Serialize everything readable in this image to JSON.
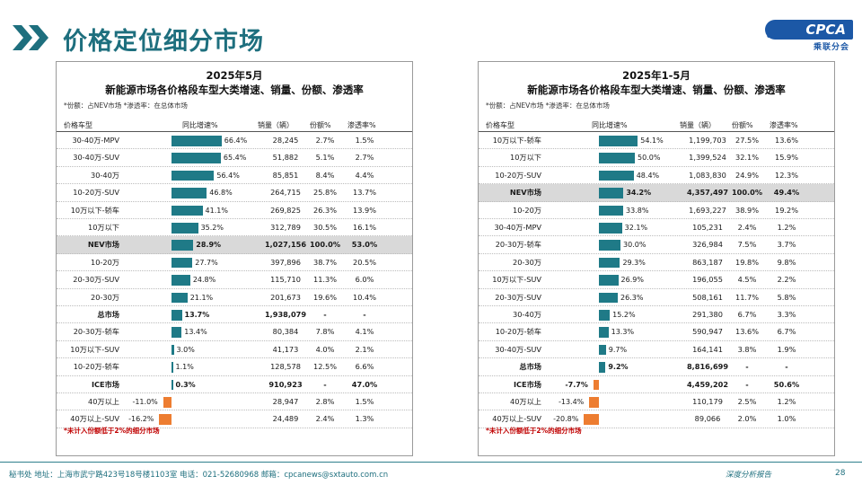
{
  "header": {
    "title": "价格定位细分市场",
    "logo_text": "CPCA",
    "logo_sub": "乘联分会",
    "logo_mark": "CPCA"
  },
  "footer": {
    "text": "秘书处  地址：上海市武宁路423号18号楼1103室  电话：021-52680968  邮箱：cpcanews@sxtauto.com.cn",
    "right": "深度分析报告",
    "page": "28"
  },
  "colors": {
    "accent": "#1e6f7e",
    "bar_positive": "#1f7a87",
    "bar_negative": "#ed7d31",
    "highlight_row": "#d9d9d9",
    "footnote": "#c00000"
  },
  "columns": [
    "价格车型",
    "同比增速%",
    "销量（辆）",
    "份额%",
    "渗透率%"
  ],
  "left": {
    "title1": "2025年5月",
    "title2": "新能源市场各价格段车型大类增速、销量、份额、渗透率",
    "note": "*份额：占NEV市场   *渗透率：在总体市场",
    "footnote": "*未计入份额低于2%的细分市场",
    "rows": [
      {
        "name": "30-40万-MPV",
        "growth": "66.4%",
        "g": 66.4,
        "sales": "28,245",
        "share": "2.7%",
        "pen": "1.5%",
        "style": ""
      },
      {
        "name": "30-40万-SUV",
        "growth": "65.4%",
        "g": 65.4,
        "sales": "51,882",
        "share": "5.1%",
        "pen": "2.7%",
        "style": ""
      },
      {
        "name": "30-40万",
        "growth": "56.4%",
        "g": 56.4,
        "sales": "85,851",
        "share": "8.4%",
        "pen": "4.4%",
        "style": ""
      },
      {
        "name": "10-20万-SUV",
        "growth": "46.8%",
        "g": 46.8,
        "sales": "264,715",
        "share": "25.8%",
        "pen": "13.7%",
        "style": ""
      },
      {
        "name": "10万以下-轿车",
        "growth": "41.1%",
        "g": 41.1,
        "sales": "269,825",
        "share": "26.3%",
        "pen": "13.9%",
        "style": ""
      },
      {
        "name": "10万以下",
        "growth": "35.2%",
        "g": 35.2,
        "sales": "312,789",
        "share": "30.5%",
        "pen": "16.1%",
        "style": ""
      },
      {
        "name": "NEV市场",
        "growth": "28.9%",
        "g": 28.9,
        "sales": "1,027,156",
        "share": "100.0%",
        "pen": "53.0%",
        "style": "hl"
      },
      {
        "name": "10-20万",
        "growth": "27.7%",
        "g": 27.7,
        "sales": "397,896",
        "share": "38.7%",
        "pen": "20.5%",
        "style": ""
      },
      {
        "name": "20-30万-SUV",
        "growth": "24.8%",
        "g": 24.8,
        "sales": "115,710",
        "share": "11.3%",
        "pen": "6.0%",
        "style": ""
      },
      {
        "name": "20-30万",
        "growth": "21.1%",
        "g": 21.1,
        "sales": "201,673",
        "share": "19.6%",
        "pen": "10.4%",
        "style": ""
      },
      {
        "name": "总市场",
        "growth": "13.7%",
        "g": 13.7,
        "sales": "1,938,079",
        "share": "-",
        "pen": "-",
        "style": "bold"
      },
      {
        "name": "20-30万-轿车",
        "growth": "13.4%",
        "g": 13.4,
        "sales": "80,384",
        "share": "7.8%",
        "pen": "4.1%",
        "style": ""
      },
      {
        "name": "10万以下-SUV",
        "growth": "3.0%",
        "g": 3.0,
        "sales": "41,173",
        "share": "4.0%",
        "pen": "2.1%",
        "style": ""
      },
      {
        "name": "10-20万-轿车",
        "growth": "1.1%",
        "g": 1.1,
        "sales": "128,578",
        "share": "12.5%",
        "pen": "6.6%",
        "style": ""
      },
      {
        "name": "ICE市场",
        "growth": "0.3%",
        "g": 0.3,
        "sales": "910,923",
        "share": "-",
        "pen": "47.0%",
        "style": "bold"
      },
      {
        "name": "40万以上",
        "growth": "-11.0%",
        "g": -11.0,
        "sales": "28,947",
        "share": "2.8%",
        "pen": "1.5%",
        "style": ""
      },
      {
        "name": "40万以上-SUV",
        "growth": "-16.2%",
        "g": -16.2,
        "sales": "24,489",
        "share": "2.4%",
        "pen": "1.3%",
        "style": ""
      }
    ]
  },
  "right": {
    "title1": "2025年1-5月",
    "title2": "新能源市场各价格段车型大类增速、销量、份额、渗透率",
    "note": "*份额：占NEV市场   *渗透率：在总体市场",
    "footnote": "*未计入份额低于2%的细分市场",
    "rows": [
      {
        "name": "10万以下-轿车",
        "growth": "54.1%",
        "g": 54.1,
        "sales": "1,199,703",
        "share": "27.5%",
        "pen": "13.6%",
        "style": ""
      },
      {
        "name": "10万以下",
        "growth": "50.0%",
        "g": 50.0,
        "sales": "1,399,524",
        "share": "32.1%",
        "pen": "15.9%",
        "style": ""
      },
      {
        "name": "10-20万-SUV",
        "growth": "48.4%",
        "g": 48.4,
        "sales": "1,083,830",
        "share": "24.9%",
        "pen": "12.3%",
        "style": ""
      },
      {
        "name": "NEV市场",
        "growth": "34.2%",
        "g": 34.2,
        "sales": "4,357,497",
        "share": "100.0%",
        "pen": "49.4%",
        "style": "hl"
      },
      {
        "name": "10-20万",
        "growth": "33.8%",
        "g": 33.8,
        "sales": "1,693,227",
        "share": "38.9%",
        "pen": "19.2%",
        "style": ""
      },
      {
        "name": "30-40万-MPV",
        "growth": "32.1%",
        "g": 32.1,
        "sales": "105,231",
        "share": "2.4%",
        "pen": "1.2%",
        "style": ""
      },
      {
        "name": "20-30万-轿车",
        "growth": "30.0%",
        "g": 30.0,
        "sales": "326,984",
        "share": "7.5%",
        "pen": "3.7%",
        "style": ""
      },
      {
        "name": "20-30万",
        "growth": "29.3%",
        "g": 29.3,
        "sales": "863,187",
        "share": "19.8%",
        "pen": "9.8%",
        "style": ""
      },
      {
        "name": "10万以下-SUV",
        "growth": "26.9%",
        "g": 26.9,
        "sales": "196,055",
        "share": "4.5%",
        "pen": "2.2%",
        "style": ""
      },
      {
        "name": "20-30万-SUV",
        "growth": "26.3%",
        "g": 26.3,
        "sales": "508,161",
        "share": "11.7%",
        "pen": "5.8%",
        "style": ""
      },
      {
        "name": "30-40万",
        "growth": "15.2%",
        "g": 15.2,
        "sales": "291,380",
        "share": "6.7%",
        "pen": "3.3%",
        "style": ""
      },
      {
        "name": "10-20万-轿车",
        "growth": "13.3%",
        "g": 13.3,
        "sales": "590,947",
        "share": "13.6%",
        "pen": "6.7%",
        "style": ""
      },
      {
        "name": "30-40万-SUV",
        "growth": "9.7%",
        "g": 9.7,
        "sales": "164,141",
        "share": "3.8%",
        "pen": "1.9%",
        "style": ""
      },
      {
        "name": "总市场",
        "growth": "9.2%",
        "g": 9.2,
        "sales": "8,816,699",
        "share": "-",
        "pen": "-",
        "style": "bold"
      },
      {
        "name": "ICE市场",
        "growth": "-7.7%",
        "g": -7.7,
        "sales": "4,459,202",
        "share": "-",
        "pen": "50.6%",
        "style": "bold"
      },
      {
        "name": "40万以上",
        "growth": "-13.4%",
        "g": -13.4,
        "sales": "110,179",
        "share": "2.5%",
        "pen": "1.2%",
        "style": ""
      },
      {
        "name": "40万以上-SUV",
        "growth": "-20.8%",
        "g": -20.8,
        "sales": "89,066",
        "share": "2.0%",
        "pen": "1.0%",
        "style": ""
      }
    ]
  }
}
